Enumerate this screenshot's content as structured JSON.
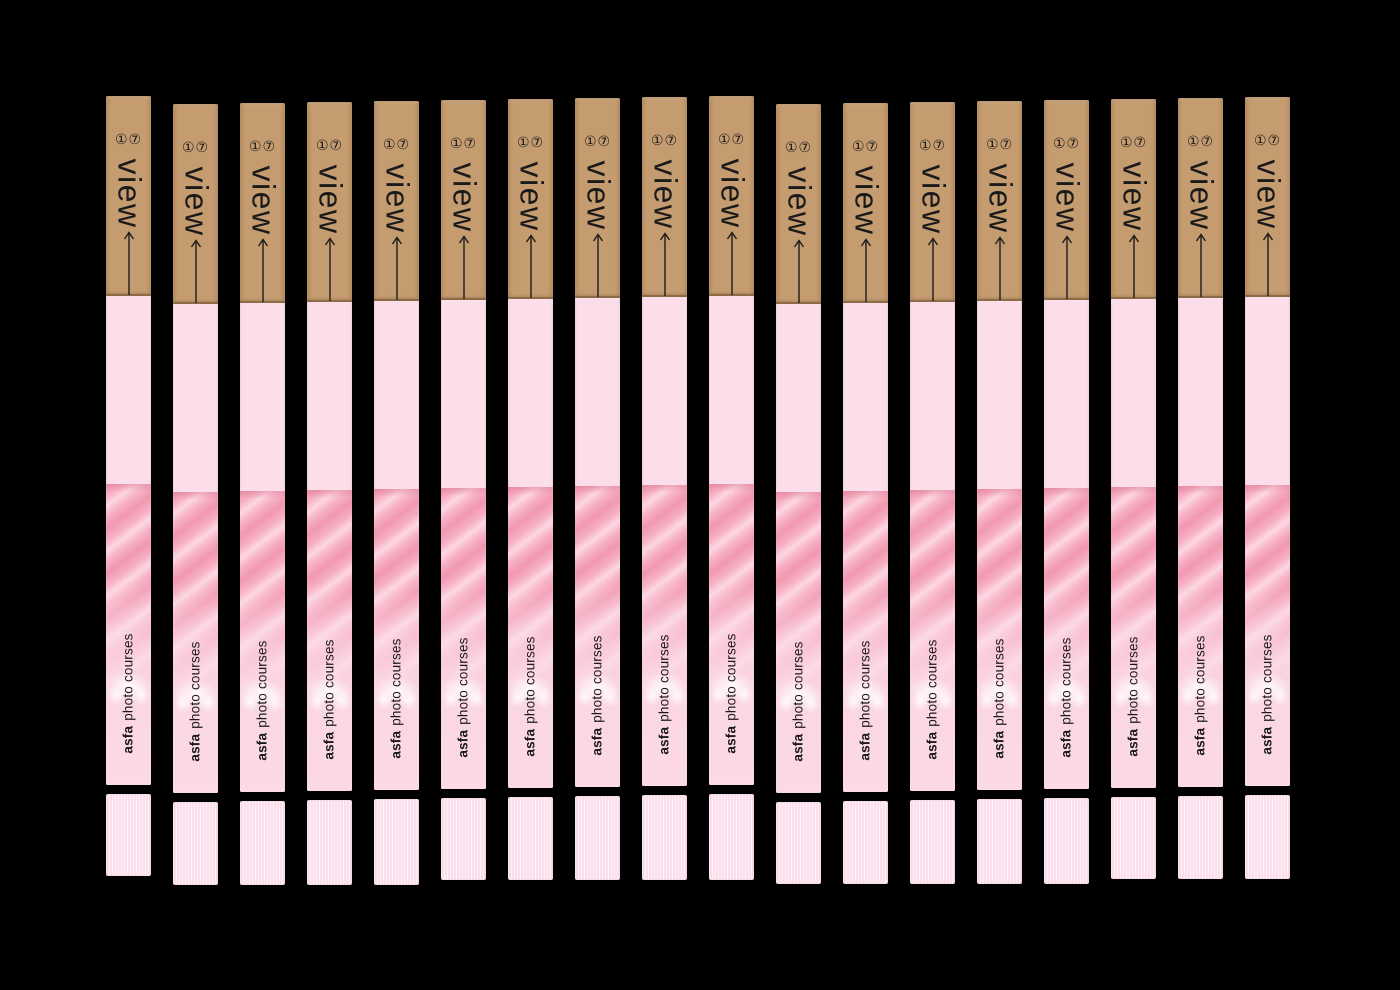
{
  "background_color": "#000000",
  "strips": {
    "count": 18,
    "spine": {
      "issue_numbers": "①⑦",
      "title": "view",
      "arrow_icon": "up-arrow",
      "caption_bold": "asfa",
      "caption_regular": "photo courses"
    },
    "colors": {
      "bg": "#000000",
      "tan": "#c59c70",
      "tan_edge": "#8d6b47",
      "pink_light": "#fcdeea",
      "texture_base": "#f4a2b9",
      "texture_streak_light": "#fdd7e2",
      "texture_streak_dark": "#f198b1",
      "foot": "#fcdfec",
      "ink": "#1a1a1a"
    }
  }
}
